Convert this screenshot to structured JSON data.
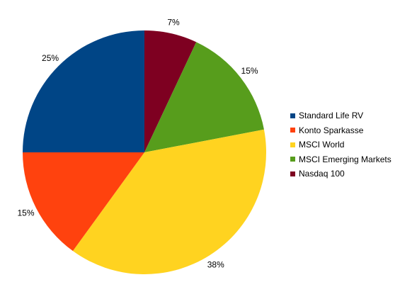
{
  "chart_data": {
    "type": "pie",
    "title": "",
    "start_angle_deg": 0,
    "direction": "clockwise",
    "legend_position": "right",
    "slices": [
      {
        "label": "Nasdaq 100",
        "value": 7,
        "value_label": "7%",
        "color": "#7e0021"
      },
      {
        "label": "MSCI Emerging Markets",
        "value": 15,
        "value_label": "15%",
        "color": "#579d1c"
      },
      {
        "label": "MSCI World",
        "value": 38,
        "value_label": "38%",
        "color": "#ffd320"
      },
      {
        "label": "Konto Sparkasse",
        "value": 15,
        "value_label": "15%",
        "color": "#ff420e"
      },
      {
        "label": "Standard Life RV",
        "value": 25,
        "value_label": "25%",
        "color": "#004586"
      }
    ],
    "legend": [
      {
        "label": "Standard Life RV",
        "color": "#004586"
      },
      {
        "label": "Konto Sparkasse",
        "color": "#ff420e"
      },
      {
        "label": "MSCI World",
        "color": "#ffd320"
      },
      {
        "label": "MSCI Emerging Markets",
        "color": "#579d1c"
      },
      {
        "label": "Nasdaq 100",
        "color": "#7e0021"
      }
    ]
  }
}
